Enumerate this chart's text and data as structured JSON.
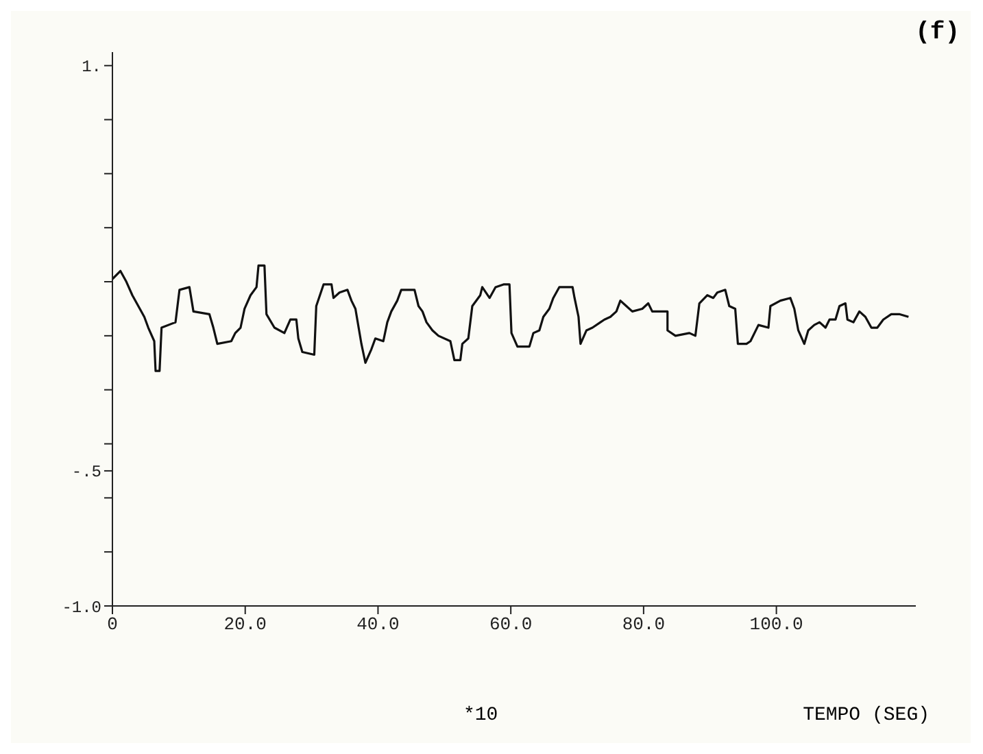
{
  "chart_data": {
    "type": "line",
    "title": "(f)",
    "xlabel": "TEMPO (SEG)",
    "annotations": [
      "*10"
    ],
    "xlim": [
      0,
      121
    ],
    "xticks": [
      0,
      {
        "value": 20,
        "label": "20.0"
      },
      {
        "value": 40,
        "label": "40.0"
      },
      {
        "value": 60,
        "label": "60.0"
      },
      {
        "value": 80,
        "label": "80.0"
      },
      {
        "value": 100,
        "label": "100.0"
      }
    ],
    "ylim": [
      -1,
      1.05
    ],
    "yticks": [
      {
        "value": -1,
        "label": "-1.0"
      },
      {
        "value": -0.8,
        "label": null
      },
      {
        "value": -0.6,
        "label": null
      },
      {
        "value": -0.5,
        "label": "-.5"
      },
      {
        "value": -0.4,
        "label": null
      },
      {
        "value": -0.2,
        "label": null
      },
      {
        "value": 0,
        "label": null
      },
      {
        "value": 0.2,
        "label": null
      },
      {
        "value": 0.4,
        "label": null
      },
      {
        "value": 0.6,
        "label": null
      },
      {
        "value": 0.8,
        "label": null
      },
      {
        "value": 1,
        "label": "1."
      }
    ],
    "marker": "none",
    "line_style": "solid",
    "series": [
      {
        "color": "#111111",
        "x": [
          0,
          1.2,
          2.1,
          3.0,
          3.9,
          4.8,
          5.4,
          6.3,
          6.5,
          7.1,
          7.4,
          9.5,
          10.1,
          11.6,
          12.2,
          14.6,
          15.2,
          15.8,
          17.9,
          18.5,
          19.3,
          19.9,
          20.8,
          21.7,
          22.0,
          22.9,
          23.2,
          24.4,
          25.9,
          26.8,
          27.7,
          28.0,
          28.6,
          30.4,
          30.7,
          31.8,
          33.0,
          33.3,
          34.2,
          35.4,
          36.0,
          36.6,
          37.5,
          38.1,
          39.0,
          39.6,
          40.8,
          41.4,
          42.0,
          42.9,
          43.5,
          45.5,
          46.1,
          46.7,
          47.3,
          48.2,
          49.1,
          50.9,
          51.5,
          52.4,
          52.7,
          53.6,
          54.2,
          55.4,
          55.7,
          56.8,
          57.7,
          58.9,
          59.8,
          60.1,
          61.0,
          62.8,
          63.4,
          64.3,
          64.9,
          65.8,
          66.4,
          67.3,
          69.3,
          69.6,
          70.2,
          70.5,
          71.4,
          72.3,
          73.5,
          74.1,
          75.0,
          75.9,
          76.5,
          77.4,
          78.3,
          79.8,
          80.7,
          81.3,
          83.6,
          83.6,
          84.8,
          86.9,
          87.8,
          88.4,
          89.6,
          90.5,
          91.1,
          92.3,
          92.9,
          93.8,
          94.2,
          95.5,
          96.1,
          97.3,
          98.8,
          99.1,
          100.6,
          102.1,
          102.7,
          103.3,
          104.2,
          104.8,
          105.7,
          106.5,
          107.4,
          108.0,
          108.9,
          109.5,
          110.4,
          110.7,
          111.6,
          112.5,
          113.4,
          114.3,
          115.2,
          116.1,
          117.3,
          118.5,
          119.9
        ],
        "values": [
          0.21,
          0.24,
          0.2,
          0.15,
          0.11,
          0.07,
          0.03,
          -0.02,
          -0.13,
          -0.13,
          0.03,
          0.05,
          0.17,
          0.18,
          0.09,
          0.08,
          0.03,
          -0.03,
          -0.02,
          0.01,
          0.03,
          0.1,
          0.15,
          0.18,
          0.26,
          0.26,
          0.08,
          0.03,
          0.01,
          0.06,
          0.06,
          -0.01,
          -0.06,
          -0.07,
          0.11,
          0.19,
          0.19,
          0.14,
          0.16,
          0.17,
          0.13,
          0.1,
          -0.03,
          -0.1,
          -0.05,
          -0.01,
          -0.02,
          0.05,
          0.09,
          0.13,
          0.17,
          0.17,
          0.11,
          0.09,
          0.05,
          0.02,
          0,
          -0.02,
          -0.09,
          -0.09,
          -0.03,
          -0.01,
          0.11,
          0.15,
          0.18,
          0.14,
          0.18,
          0.19,
          0.19,
          0.01,
          -0.04,
          -0.04,
          0.01,
          0.02,
          0.07,
          0.1,
          0.14,
          0.18,
          0.18,
          0.14,
          0.07,
          -0.03,
          0.02,
          0.03,
          0.05,
          0.06,
          0.07,
          0.09,
          0.13,
          0.11,
          0.09,
          0.1,
          0.12,
          0.09,
          0.09,
          0.02,
          0,
          0.01,
          0,
          0.12,
          0.15,
          0.14,
          0.16,
          0.17,
          0.11,
          0.1,
          -0.03,
          -0.03,
          -0.02,
          0.04,
          0.03,
          0.11,
          0.13,
          0.14,
          0.1,
          0.02,
          -0.03,
          0.02,
          0.04,
          0.05,
          0.03,
          0.06,
          0.06,
          0.11,
          0.12,
          0.06,
          0.05,
          0.09,
          0.07,
          0.03,
          0.03,
          0.06,
          0.08,
          0.08,
          0.07
        ]
      }
    ]
  }
}
